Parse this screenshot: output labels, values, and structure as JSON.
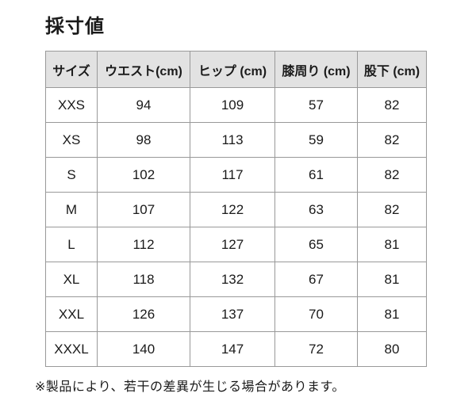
{
  "page": {
    "title": "採寸値",
    "footnote": "※製品により、若干の差異が生じる場合があります。"
  },
  "table": {
    "columns": [
      "サイズ",
      "ウエスト(cm)",
      "ヒップ (cm)",
      "膝周り (cm)",
      "股下 (cm)"
    ],
    "rows": [
      [
        "XXS",
        "94",
        "109",
        "57",
        "82"
      ],
      [
        "XS",
        "98",
        "113",
        "59",
        "82"
      ],
      [
        "S",
        "102",
        "117",
        "61",
        "82"
      ],
      [
        "M",
        "107",
        "122",
        "63",
        "82"
      ],
      [
        "L",
        "112",
        "127",
        "65",
        "81"
      ],
      [
        "XL",
        "118",
        "132",
        "67",
        "81"
      ],
      [
        "XXL",
        "126",
        "137",
        "70",
        "81"
      ],
      [
        "XXXL",
        "140",
        "147",
        "72",
        "80"
      ]
    ]
  },
  "colors": {
    "header_bg": "#e2e2e2",
    "border": "#999999",
    "text": "#1a1a1a"
  }
}
